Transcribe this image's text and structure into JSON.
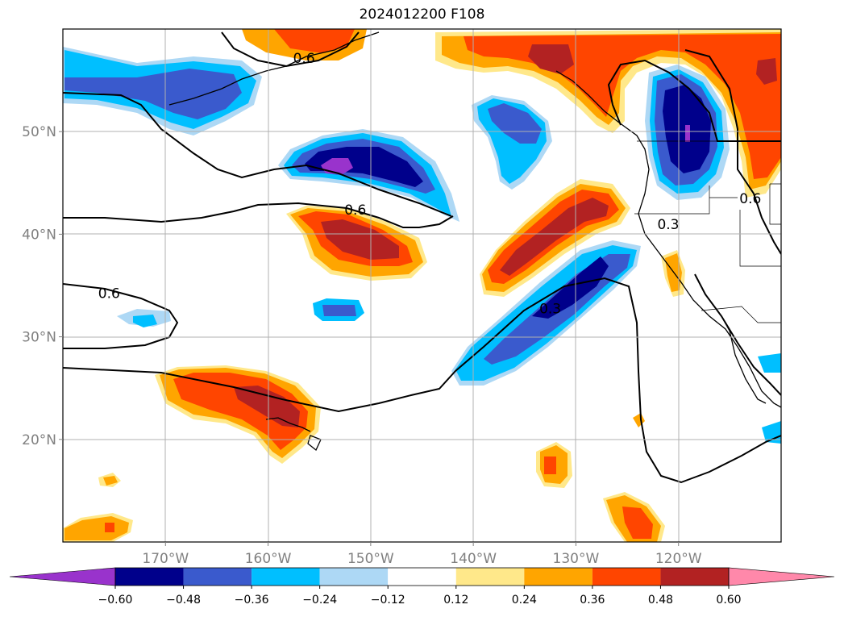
{
  "title": "2024012200 F108",
  "map": {
    "lon_range": [
      -180,
      -110
    ],
    "lat_range": [
      10,
      60
    ],
    "lon_ticks": [
      {
        "value": -170,
        "label": "170°W"
      },
      {
        "value": -160,
        "label": "160°W"
      },
      {
        "value": -150,
        "label": "150°W"
      },
      {
        "value": -140,
        "label": "140°W"
      },
      {
        "value": -130,
        "label": "130°W"
      },
      {
        "value": -120,
        "label": "120°W"
      }
    ],
    "lat_ticks": [
      {
        "value": 20,
        "label": "20°N"
      },
      {
        "value": 30,
        "label": "30°N"
      },
      {
        "value": 40,
        "label": "40°N"
      },
      {
        "value": 50,
        "label": "50°N"
      }
    ],
    "grid": true,
    "contour_labels": [
      {
        "text": "0.6",
        "lon": -156.5,
        "lat": 56.7
      },
      {
        "text": "0.6",
        "lon": -151.5,
        "lat": 41.9
      },
      {
        "text": "0.6",
        "lon": -175.5,
        "lat": 33.8
      },
      {
        "text": "0.3",
        "lon": -132.5,
        "lat": 32.3
      },
      {
        "text": "0.3",
        "lon": -121.0,
        "lat": 40.5
      },
      {
        "text": "0.6",
        "lon": -113.0,
        "lat": 43.0
      }
    ]
  },
  "colorbar": {
    "labels": [
      "−0.60",
      "−0.48",
      "−0.36",
      "−0.24",
      "−0.12",
      "0.12",
      "0.24",
      "0.36",
      "0.48",
      "0.60"
    ],
    "colors": [
      "#9933cc",
      "#00008b",
      "#3a5acd",
      "#00bfff",
      "#add8f5",
      "#ffffff",
      "#ffe88a",
      "#ffa500",
      "#ff4500",
      "#b22222",
      "#ff88aa"
    ]
  },
  "chart_data": {
    "type": "heatmap",
    "title": "2024012200 F108",
    "xlabel": "",
    "ylabel": "",
    "x_range": [
      -180,
      -110
    ],
    "y_range": [
      10,
      60
    ],
    "levels": [
      -0.6,
      -0.48,
      -0.36,
      -0.24,
      -0.12,
      0.12,
      0.24,
      0.36,
      0.48,
      0.6
    ],
    "anomaly_features": [
      {
        "lon": -151,
        "lat": 46.5,
        "min_value": -0.6
      },
      {
        "lon": -120,
        "lat": 50,
        "min_value": -0.6
      },
      {
        "lon": -132,
        "lat": 34,
        "min_value": -0.48
      },
      {
        "lon": -170,
        "lat": 55,
        "min_value": -0.36
      },
      {
        "lon": -135,
        "lat": 50,
        "min_value": -0.36
      },
      {
        "lon": -152,
        "lat": 40,
        "max_value": 0.48
      },
      {
        "lon": -132,
        "lat": 40,
        "max_value": 0.48
      },
      {
        "lon": -161,
        "lat": 22.5,
        "max_value": 0.48
      },
      {
        "lon": -130,
        "lat": 58,
        "max_value": 0.48
      },
      {
        "lon": -113,
        "lat": 55,
        "max_value": 0.48
      }
    ]
  }
}
